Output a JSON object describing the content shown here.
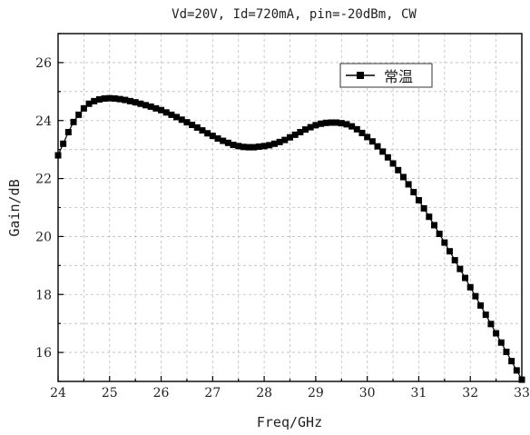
{
  "chart_data": {
    "type": "line",
    "title": "Vd=20V, Id=720mA, pin=-20dBm, CW",
    "xlabel": "Freq/GHz",
    "ylabel": "Gain/dB",
    "xlim": [
      24,
      33
    ],
    "ylim": [
      15,
      27
    ],
    "xticks": [
      24,
      25,
      26,
      27,
      28,
      29,
      30,
      31,
      32,
      33
    ],
    "yticks": [
      16,
      18,
      20,
      22,
      24,
      26
    ],
    "grid": true,
    "grid_style": "dashed",
    "legend_position": "top-right",
    "series": [
      {
        "name": "常温",
        "color": "#000000",
        "marker": "square",
        "x": [
          24.0,
          24.1,
          24.2,
          24.3,
          24.4,
          24.5,
          24.6,
          24.7,
          24.8,
          24.9,
          25.0,
          25.1,
          25.2,
          25.3,
          25.4,
          25.5,
          25.6,
          25.7,
          25.8,
          25.9,
          26.0,
          26.1,
          26.2,
          26.3,
          26.4,
          26.5,
          26.6,
          26.7,
          26.8,
          26.9,
          27.0,
          27.1,
          27.2,
          27.3,
          27.4,
          27.5,
          27.6,
          27.7,
          27.8,
          27.9,
          28.0,
          28.1,
          28.2,
          28.3,
          28.4,
          28.5,
          28.6,
          28.7,
          28.8,
          28.9,
          29.0,
          29.1,
          29.2,
          29.3,
          29.4,
          29.5,
          29.6,
          29.7,
          29.8,
          29.9,
          30.0,
          30.1,
          30.2,
          30.3,
          30.4,
          30.5,
          30.6,
          30.7,
          30.8,
          30.9,
          31.0,
          31.1,
          31.2,
          31.3,
          31.4,
          31.5,
          31.6,
          31.7,
          31.8,
          31.9,
          32.0,
          32.1,
          32.2,
          32.3,
          32.4,
          32.5,
          32.6,
          32.7,
          32.8,
          32.9,
          33.0
        ],
        "y": [
          22.8,
          23.2,
          23.6,
          23.95,
          24.2,
          24.42,
          24.58,
          24.67,
          24.73,
          24.76,
          24.77,
          24.76,
          24.74,
          24.71,
          24.67,
          24.63,
          24.58,
          24.53,
          24.48,
          24.42,
          24.36,
          24.28,
          24.2,
          24.12,
          24.03,
          23.94,
          23.85,
          23.76,
          23.66,
          23.56,
          23.47,
          23.38,
          23.3,
          23.23,
          23.16,
          23.12,
          23.09,
          23.08,
          23.08,
          23.1,
          23.12,
          23.15,
          23.2,
          23.26,
          23.33,
          23.42,
          23.51,
          23.6,
          23.69,
          23.77,
          23.84,
          23.89,
          23.92,
          23.93,
          23.93,
          23.91,
          23.87,
          23.8,
          23.7,
          23.57,
          23.43,
          23.28,
          23.11,
          22.93,
          22.73,
          22.52,
          22.29,
          22.05,
          21.8,
          21.53,
          21.25,
          20.97,
          20.68,
          20.39,
          20.09,
          19.79,
          19.49,
          19.18,
          18.88,
          18.57,
          18.25,
          17.94,
          17.62,
          17.3,
          16.98,
          16.66,
          16.34,
          16.02,
          15.7,
          15.38,
          15.06
        ]
      }
    ]
  }
}
